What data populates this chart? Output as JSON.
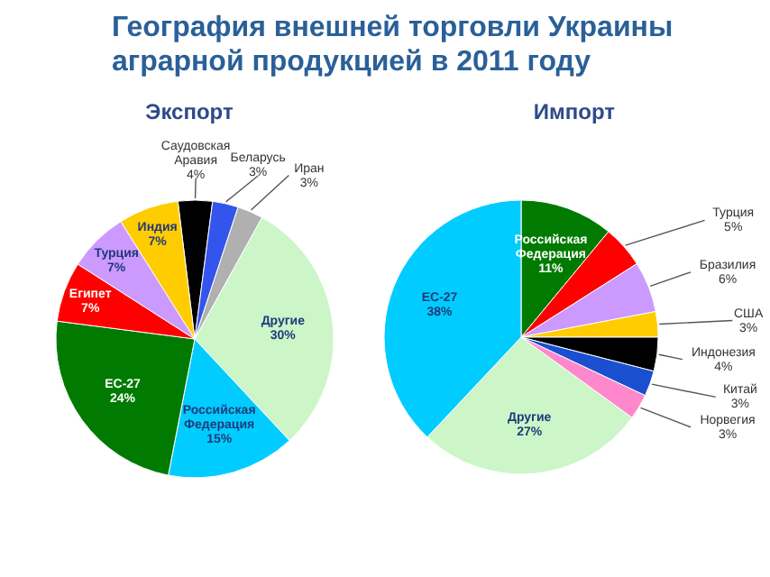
{
  "chart_data": [
    {
      "type": "pie",
      "title": "География внешней торговли Украины аграрной продукцией в 2011 году",
      "subtitle": "Экспорт",
      "categories": [
        "Саудовская Аравия",
        "Беларусь",
        "Иран",
        "Другие",
        "Российская Федерация",
        "ЕС-27",
        "Египет",
        "Турция",
        "Индия"
      ],
      "values": [
        4,
        3,
        3,
        30,
        15,
        24,
        7,
        7,
        7
      ],
      "colors": [
        "#000000",
        "#3355ee",
        "#b0b0b0",
        "#ccf5c8",
        "#00ccff",
        "#007a00",
        "#ff0000",
        "#cc99ff",
        "#ffcc00"
      ],
      "value_labels": [
        "4%",
        "3%",
        "3%",
        "30%",
        "15%",
        "24%",
        "7%",
        "7%",
        "7%"
      ]
    },
    {
      "type": "pie",
      "title": "Импорт",
      "categories": [
        "Российская Федерация",
        "Турция",
        "Бразилия",
        "США",
        "Индонезия",
        "Китай",
        "Норвегия",
        "Другие",
        "ЕС-27"
      ],
      "values": [
        11,
        5,
        6,
        3,
        4,
        3,
        3,
        27,
        38
      ],
      "colors": [
        "#007a00",
        "#ff0000",
        "#cc99ff",
        "#ffcc00",
        "#000000",
        "#1a4fd0",
        "#ff88cc",
        "#ccf5c8",
        "#00ccff"
      ],
      "value_labels": [
        "11%",
        "5%",
        "6%",
        "3%",
        "4%",
        "3%",
        "3%",
        "27%",
        "38%"
      ]
    }
  ]
}
